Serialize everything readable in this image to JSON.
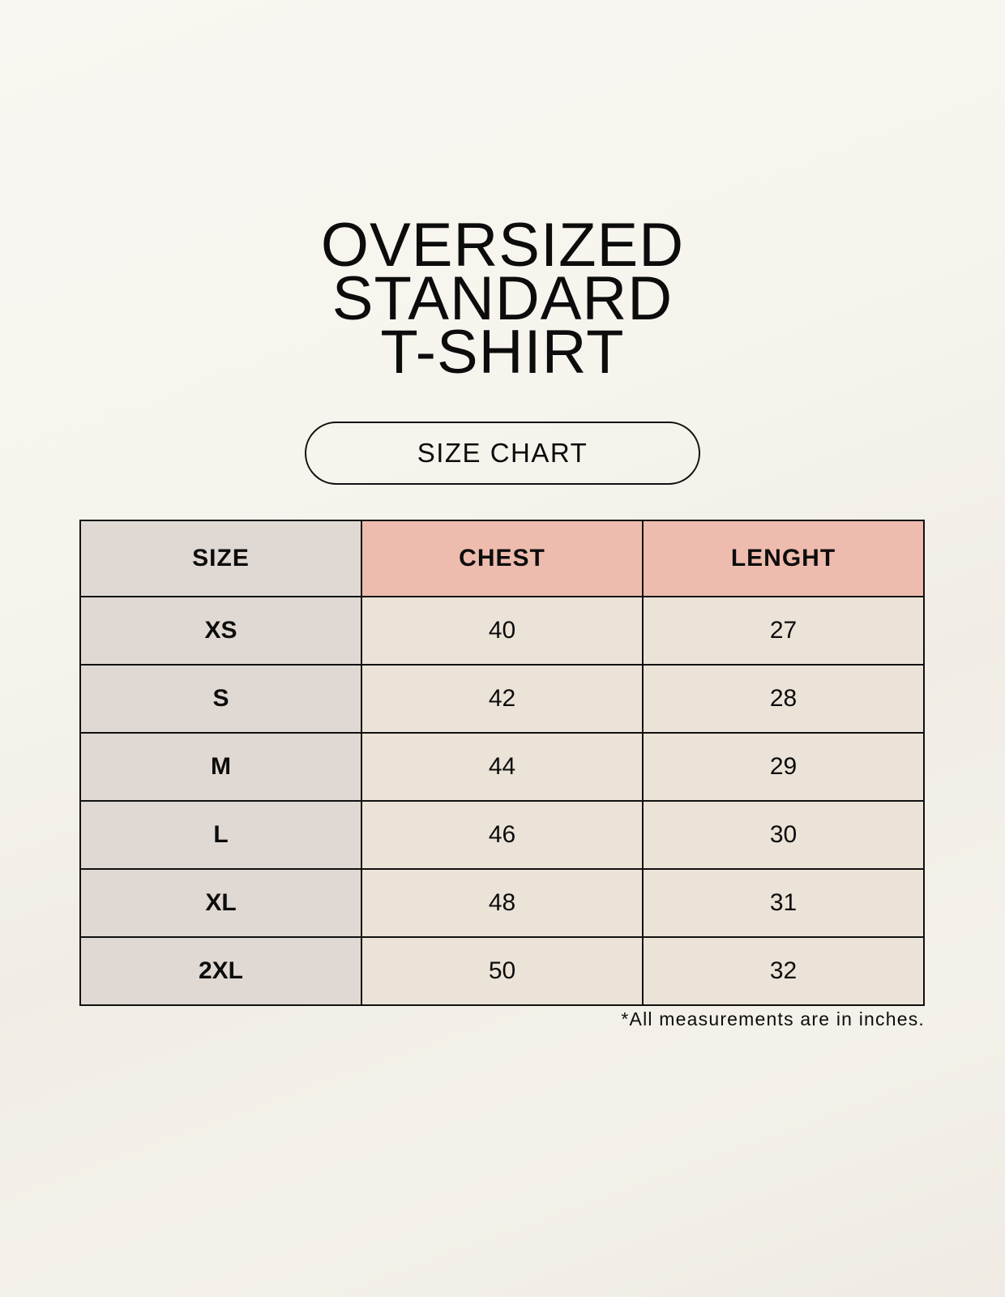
{
  "title": {
    "lines": [
      "OVERSIZED",
      "STANDARD",
      "T-SHIRT"
    ]
  },
  "badge": "SIZE CHART",
  "table": {
    "headers": [
      "SIZE",
      "CHEST",
      "LENGHT"
    ],
    "rows": [
      [
        "XS",
        "40",
        "27"
      ],
      [
        "S",
        "42",
        "28"
      ],
      [
        "M",
        "44",
        "29"
      ],
      [
        "L",
        "46",
        "30"
      ],
      [
        "XL",
        "48",
        "31"
      ],
      [
        "2XL",
        "50",
        "32"
      ]
    ]
  },
  "footnote": "*All measurements are in inches.",
  "colors": {
    "size_column": "#e0d8d2",
    "header_accent": "#eebcae",
    "cell": "#ebe3d8",
    "background": "#f8f6f0"
  }
}
